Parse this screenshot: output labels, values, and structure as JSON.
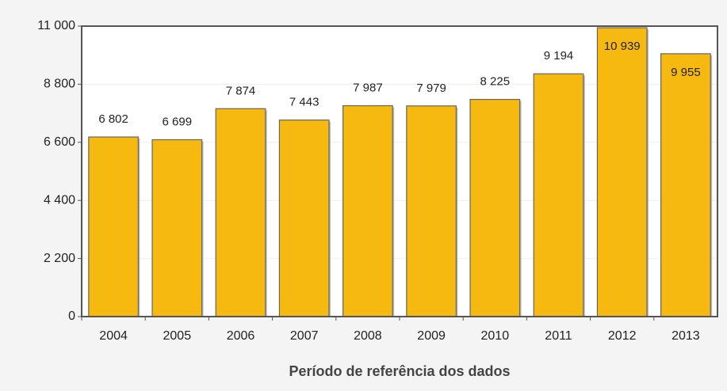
{
  "chart_data": {
    "type": "bar",
    "x_label": "Período de referência dos dados",
    "categories": [
      "2004",
      "2005",
      "2006",
      "2007",
      "2008",
      "2009",
      "2010",
      "2011",
      "2012",
      "2013"
    ],
    "values": [
      6802,
      6699,
      7874,
      7443,
      7987,
      7979,
      8225,
      9194,
      10939,
      9955
    ],
    "value_labels": [
      "6 802",
      "6 699",
      "7 874",
      "7 443",
      "7 987",
      "7 979",
      "8 225",
      "9 194",
      "10 939",
      "9 955"
    ],
    "color": "#f5b90f",
    "ylim": [
      0,
      11000
    ],
    "yticks": [
      0,
      {
        "value": 2200,
        "label": "2 200"
      },
      {
        "value": 4400,
        "label": "4 400"
      },
      {
        "value": 6600,
        "label": "6 600"
      },
      {
        "value": 8800,
        "label": "8 800"
      },
      {
        "value": 11000,
        "label": "11 000"
      }
    ],
    "grid": true
  }
}
